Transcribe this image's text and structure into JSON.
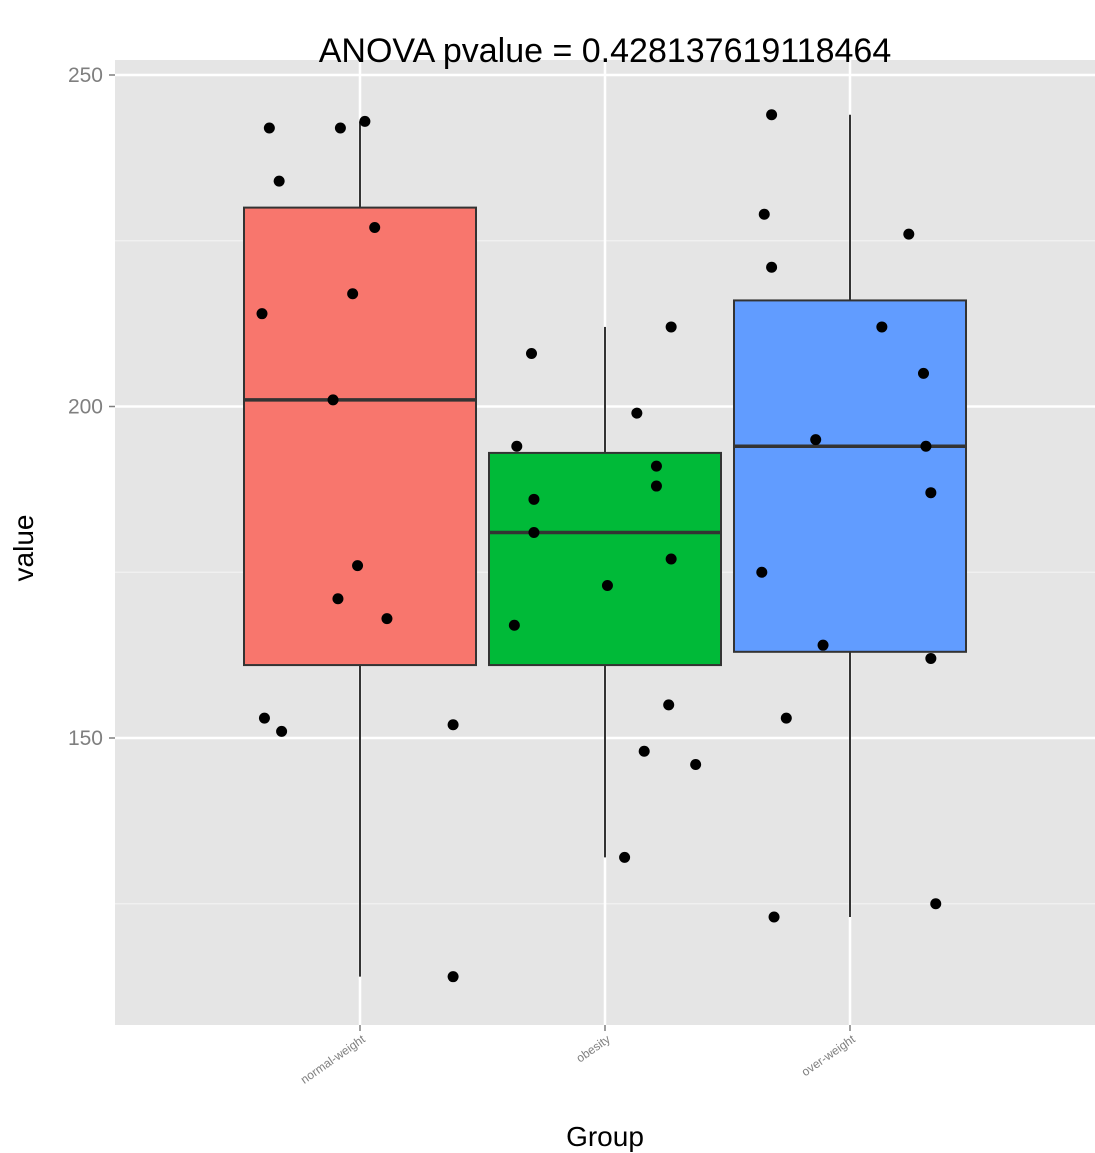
{
  "chart_data": {
    "type": "box",
    "title": "ANOVA pvalue = 0.428137619118464",
    "xlabel": "Group",
    "ylabel": "value",
    "ylim": [
      107,
      250
    ],
    "yticks": [
      150,
      200,
      250
    ],
    "grid": true,
    "legend": "none",
    "categories": [
      "normal-weight",
      "obesity",
      "over-weight"
    ],
    "colors": [
      "#F8766D",
      "#00BA38",
      "#619CFF"
    ],
    "boxes": [
      {
        "category": "normal-weight",
        "whisker_low": 114,
        "q1": 161,
        "median": 201,
        "q3": 230,
        "whisker_high": 243
      },
      {
        "category": "obesity",
        "whisker_low": 132,
        "q1": 161,
        "median": 181,
        "q3": 193,
        "whisker_high": 212
      },
      {
        "category": "over-weight",
        "whisker_low": 123,
        "q1": 163,
        "median": 194,
        "q3": 216,
        "whisker_high": 244
      }
    ],
    "points": [
      {
        "category": "normal-weight",
        "values": [
          242,
          234,
          214,
          242,
          243,
          227,
          217,
          201,
          176,
          171,
          168,
          153,
          151,
          152,
          114
        ],
        "jitter": [
          -0.37,
          -0.33,
          -0.4,
          -0.08,
          0.02,
          0.06,
          -0.03,
          -0.11,
          -0.01,
          -0.09,
          0.11,
          -0.39,
          -0.32,
          0.38,
          0.38
        ]
      },
      {
        "category": "obesity",
        "values": [
          208,
          194,
          186,
          181,
          173,
          167,
          199,
          191,
          188,
          177,
          212,
          155,
          148,
          146,
          132
        ],
        "jitter": [
          -0.3,
          -0.36,
          -0.29,
          -0.29,
          0.01,
          -0.37,
          0.13,
          0.21,
          0.21,
          0.27,
          0.27,
          0.26,
          0.16,
          0.37,
          0.08
        ]
      },
      {
        "category": "over-weight",
        "values": [
          244,
          229,
          221,
          175,
          153,
          123,
          195,
          164,
          212,
          226,
          205,
          194,
          187,
          162,
          125
        ],
        "jitter": [
          -0.32,
          -0.35,
          -0.32,
          -0.36,
          -0.26,
          -0.31,
          -0.14,
          -0.11,
          0.13,
          0.24,
          0.3,
          0.31,
          0.33,
          0.33,
          0.35
        ]
      }
    ]
  }
}
